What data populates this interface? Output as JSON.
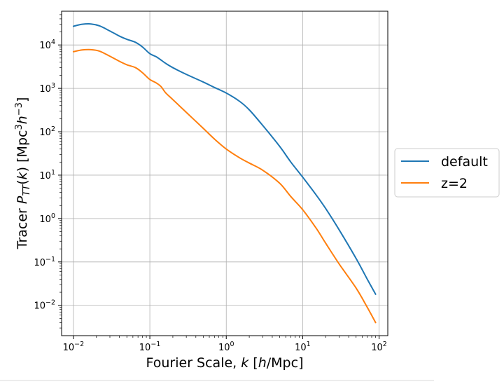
{
  "chart_data": {
    "type": "line",
    "xscale": "log",
    "yscale": "log",
    "xlim": [
      0.007,
      130
    ],
    "ylim": [
      0.002,
      60000
    ],
    "grid": true,
    "legend_position": "outside-right",
    "xlabel_parts": [
      "Fourier Scale, ",
      "k",
      " [",
      "h",
      "/Mpc]"
    ],
    "ylabel_parts": [
      "Tracer ",
      "P",
      "TT",
      "(",
      "k",
      ") [Mpc",
      "3",
      "h",
      "−3",
      "]"
    ],
    "xticks": [
      {
        "value": 0.01,
        "base": "10",
        "exp": "−2"
      },
      {
        "value": 0.1,
        "base": "10",
        "exp": "−1"
      },
      {
        "value": 1,
        "base": "10",
        "exp": "0"
      },
      {
        "value": 10,
        "base": "10",
        "exp": "1"
      },
      {
        "value": 100,
        "base": "10",
        "exp": "2"
      }
    ],
    "yticks": [
      {
        "value": 0.01,
        "base": "10",
        "exp": "−2"
      },
      {
        "value": 0.1,
        "base": "10",
        "exp": "−1"
      },
      {
        "value": 1,
        "base": "10",
        "exp": "0"
      },
      {
        "value": 10,
        "base": "10",
        "exp": "1"
      },
      {
        "value": 100,
        "base": "10",
        "exp": "2"
      },
      {
        "value": 1000,
        "base": "10",
        "exp": "3"
      },
      {
        "value": 10000,
        "base": "10",
        "exp": "4"
      }
    ],
    "series": [
      {
        "name": "default",
        "color": "#1f77b4",
        "x": [
          0.01,
          0.013,
          0.017,
          0.022,
          0.03,
          0.04,
          0.05,
          0.065,
          0.08,
          0.1,
          0.12,
          0.14,
          0.16,
          0.2,
          0.3,
          0.5,
          0.7,
          1,
          1.5,
          2,
          3,
          5,
          7,
          10,
          15,
          20,
          30,
          50,
          70,
          90
        ],
        "values": [
          27000,
          30000,
          30500,
          27500,
          21000,
          16000,
          13500,
          11500,
          9000,
          6300,
          5400,
          4500,
          3800,
          3000,
          2100,
          1400,
          1050,
          780,
          500,
          320,
          140,
          46,
          20,
          9,
          3.5,
          1.7,
          0.55,
          0.12,
          0.04,
          0.018
        ]
      },
      {
        "name": "z=2",
        "color": "#ff7f0e",
        "x": [
          0.01,
          0.013,
          0.017,
          0.022,
          0.03,
          0.04,
          0.05,
          0.065,
          0.08,
          0.1,
          0.12,
          0.14,
          0.16,
          0.2,
          0.3,
          0.5,
          0.7,
          1,
          1.5,
          2,
          3,
          5,
          7,
          10,
          15,
          20,
          30,
          50,
          70,
          90
        ],
        "values": [
          7000,
          7700,
          7800,
          7200,
          5500,
          4200,
          3500,
          3000,
          2300,
          1600,
          1350,
          1100,
          800,
          550,
          280,
          120,
          68,
          40,
          25,
          19,
          13,
          6.5,
          3.2,
          1.6,
          0.6,
          0.27,
          0.09,
          0.025,
          0.009,
          0.004
        ]
      }
    ]
  }
}
